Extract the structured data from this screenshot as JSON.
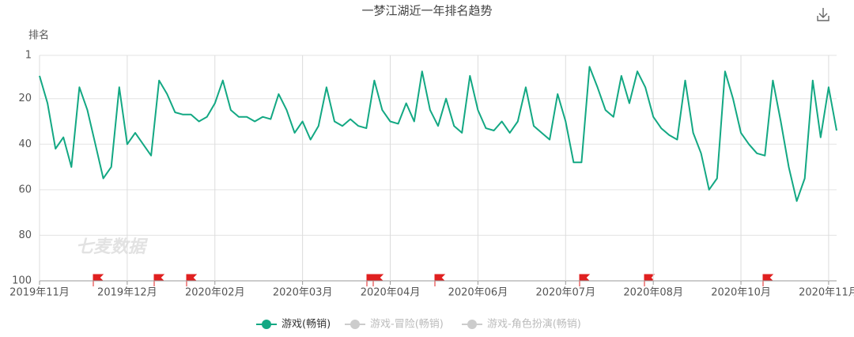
{
  "chart_data": {
    "type": "line",
    "title": "一梦江湖近一年排名趋势",
    "ylabel": "排名",
    "watermark": "七麦数据",
    "y_inverted": true,
    "ylim": [
      1,
      100
    ],
    "yticks": [
      1,
      20,
      40,
      60,
      80,
      100
    ],
    "grid": true,
    "categories": [
      "2019年11月",
      null,
      null,
      null,
      null,
      null,
      null,
      null,
      null,
      null,
      null,
      "2019年12月",
      null,
      null,
      null,
      null,
      null,
      null,
      null,
      null,
      null,
      null,
      "2020年02月",
      null,
      null,
      null,
      null,
      null,
      null,
      null,
      null,
      null,
      null,
      "2020年03月",
      null,
      null,
      null,
      null,
      null,
      null,
      null,
      null,
      null,
      null,
      "2020年04月",
      null,
      null,
      null,
      null,
      null,
      null,
      null,
      null,
      null,
      null,
      "2020年06月",
      null,
      null,
      null,
      null,
      null,
      null,
      null,
      null,
      null,
      null,
      "2020年07月",
      null,
      null,
      null,
      null,
      null,
      null,
      null,
      null,
      null,
      null,
      "2020年08月",
      null,
      null,
      null,
      null,
      null,
      null,
      null,
      null,
      null,
      null,
      "2020年10月",
      null,
      null,
      null,
      null,
      null,
      null,
      null,
      null,
      null,
      null,
      "2020年11月",
      null
    ],
    "series": [
      {
        "name": "游戏(畅销)",
        "color": "#13a883",
        "values": [
          10,
          22,
          42,
          37,
          50,
          15,
          25,
          40,
          55,
          50,
          15,
          40,
          35,
          40,
          45,
          12,
          18,
          26,
          27,
          27,
          30,
          28,
          22,
          12,
          25,
          28,
          28,
          30,
          28,
          29,
          18,
          25,
          35,
          30,
          38,
          32,
          15,
          30,
          32,
          29,
          32,
          33,
          12,
          25,
          30,
          31,
          22,
          30,
          8,
          25,
          32,
          20,
          32,
          35,
          10,
          25,
          33,
          34,
          30,
          35,
          30,
          15,
          32,
          35,
          38,
          18,
          30,
          48,
          48,
          6,
          15,
          25,
          28,
          10,
          22,
          8,
          15,
          28,
          33,
          36,
          38,
          12,
          35,
          44,
          60,
          55,
          8,
          20,
          35,
          40,
          44,
          45,
          12,
          30,
          50,
          65,
          55,
          12,
          37,
          15,
          34
        ]
      }
    ],
    "inactive_series": [
      {
        "name": "游戏-冒险(畅销)",
        "color": "#cccccc"
      },
      {
        "name": "游戏-角色扮演(畅销)",
        "color": "#cccccc"
      }
    ]
  }
}
